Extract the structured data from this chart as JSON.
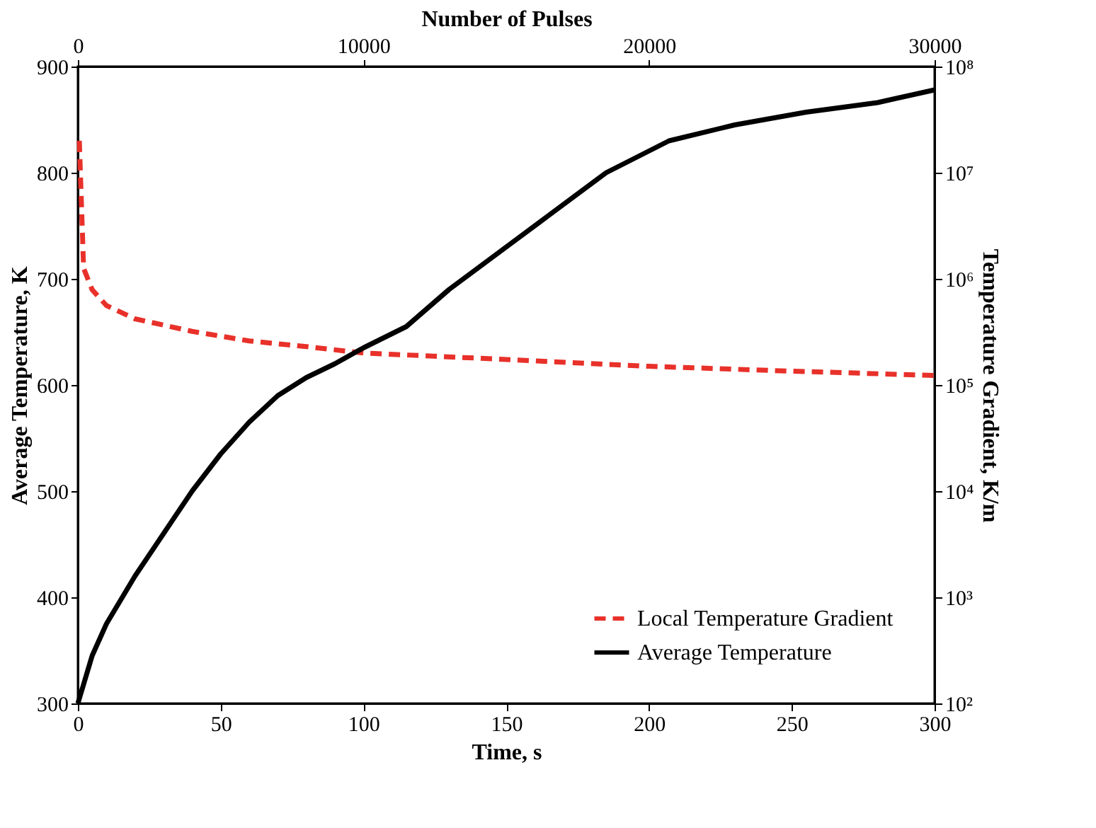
{
  "chart_data": {
    "type": "line",
    "xlabel": "Time, s",
    "ylabel": "Average Temperature, K",
    "y2label": "Temperature Gradient, K/m",
    "x2label": "Number of Pulses",
    "xlim": [
      0,
      300
    ],
    "xticks": [
      0,
      50,
      100,
      150,
      200,
      250,
      300
    ],
    "x2lim": [
      0,
      30000
    ],
    "x2ticks": [
      0,
      10000,
      20000,
      30000
    ],
    "ylim": [
      300,
      900
    ],
    "yticks": [
      300,
      400,
      500,
      600,
      700,
      800,
      900
    ],
    "y2lim": [
      100,
      100000000
    ],
    "y2ticks": [
      {
        "value": 100,
        "label": "10²"
      },
      {
        "value": 1000,
        "label": "10³"
      },
      {
        "value": 10000,
        "label": "10⁴"
      },
      {
        "value": 100000,
        "label": "10⁵"
      },
      {
        "value": 1000000,
        "label": "10⁶"
      },
      {
        "value": 10000000,
        "label": "10⁷"
      },
      {
        "value": 100000000,
        "label": "10⁸"
      }
    ],
    "log": "y2",
    "legend": "bottom right",
    "series": [
      {
        "name": "Local Temperature Gradient",
        "color": "#e8312a",
        "axis": "y2",
        "line_style": "dashed",
        "x": [
          0.5,
          2,
          5,
          10,
          20,
          40,
          60,
          80,
          100,
          150,
          200,
          250,
          300
        ],
        "values": [
          20000000,
          1260000,
          790000,
          560000,
          420000,
          320000,
          260000,
          230000,
          200000,
          174000,
          150000,
          135000,
          123000
        ]
      },
      {
        "name": "Average Temperature",
        "color": "#000000",
        "line_style": "solid",
        "x": [
          0,
          5,
          10,
          20,
          30,
          40,
          50,
          60,
          70,
          80,
          90,
          100,
          115,
          130,
          150,
          165,
          185,
          207,
          230,
          255,
          280,
          300
        ],
        "values": [
          300,
          345,
          375,
          420,
          460,
          500,
          535,
          565,
          590,
          607,
          620,
          635,
          655,
          690,
          730,
          760,
          800,
          830,
          845,
          857,
          866,
          878
        ]
      }
    ]
  }
}
